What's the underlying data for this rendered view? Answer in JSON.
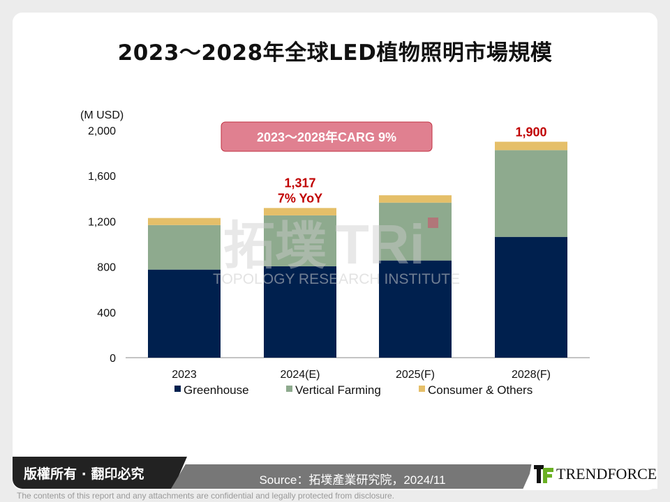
{
  "title": "2023～2028年全球LED植物照明市場規模",
  "cagr_label": "2023～2028年CARG 9%",
  "watermark": {
    "cn": "拓墣",
    "en": "TOPOLOGY RESEARCH INSTITUTE",
    "logo": "TRi"
  },
  "colors": {
    "greenhouse": "#00204e",
    "vertical_farming": "#8eaa8e",
    "consumer_others": "#e5bf69",
    "annotation": "#c00000",
    "cagr_box": "#e08090"
  },
  "chart_data": {
    "type": "bar",
    "stacked": true,
    "ylabel": "(M USD)",
    "ylim": [
      0,
      2000
    ],
    "yticks": [
      0,
      400,
      800,
      1200,
      1600,
      2000
    ],
    "ytick_labels": [
      "0",
      "400",
      "800",
      "1,200",
      "1,600",
      "2,000"
    ],
    "categories": [
      "2023",
      "2024(E)",
      "2025(F)",
      "2028(F)"
    ],
    "series": [
      {
        "name": "Greenhouse",
        "values": [
          775,
          804,
          855,
          1063
        ]
      },
      {
        "name": "Vertical Farming",
        "values": [
          392,
          448,
          509,
          763
        ]
      },
      {
        "name": "Consumer & Others",
        "values": [
          62,
          65,
          65,
          74
        ]
      }
    ],
    "annotations": [
      {
        "category": "2024(E)",
        "lines": [
          "1,317",
          "7% YoY"
        ]
      },
      {
        "category": "2028(F)",
        "lines": [
          "1,900"
        ]
      }
    ],
    "legend": "bottom",
    "grid": false
  },
  "footer": {
    "copyright": "版權所有 · 翻印必究",
    "source": "Source：拓墣產業研究院，2024/11",
    "brand": "TrendForce",
    "disclaimer": "The contents of this report and any attachments are confidential and legally protected from disclosure."
  }
}
